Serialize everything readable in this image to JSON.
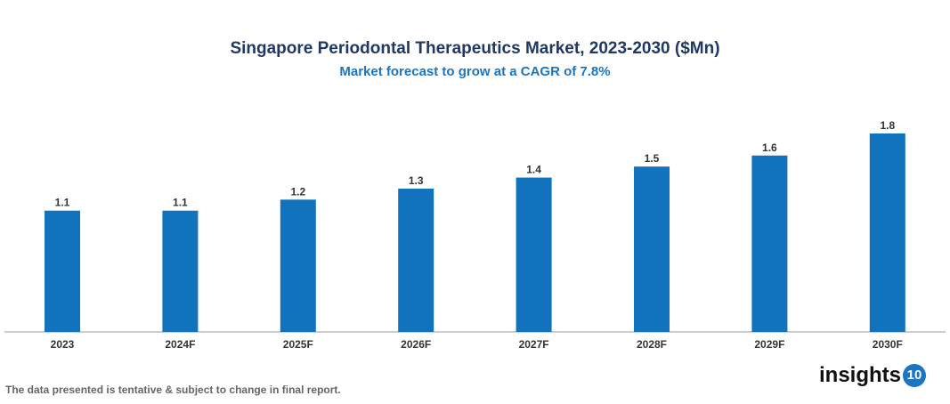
{
  "chart_data": {
    "type": "bar",
    "title": "Singapore Periodontal Therapeutics Market, 2023-2030 ($Mn)",
    "subtitle": "Market forecast to grow at a CAGR of 7.8%",
    "categories": [
      "2023",
      "2024F",
      "2025F",
      "2026F",
      "2027F",
      "2028F",
      "2029F",
      "2030F"
    ],
    "values": [
      1.1,
      1.1,
      1.2,
      1.3,
      1.4,
      1.5,
      1.6,
      1.8
    ],
    "xlabel": "",
    "ylabel": "",
    "ylim": [
      0,
      1.8
    ],
    "grid": false,
    "data_labels": true,
    "bar_color": "#1172bd"
  },
  "footnote": "The data presented is tentative & subject to change in final report.",
  "logo": {
    "text": "insights",
    "badge": "10"
  }
}
